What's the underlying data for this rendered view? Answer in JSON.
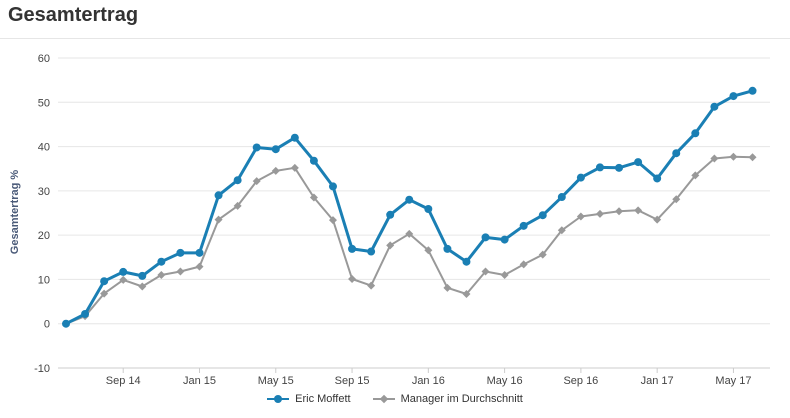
{
  "chart_data": {
    "type": "line",
    "title": "Gesamtertrag",
    "ylabel": "Gesamtertrag %",
    "xlabel": "",
    "ylim": [
      -10,
      60
    ],
    "yticks": [
      -10,
      0,
      10,
      20,
      30,
      40,
      50,
      60
    ],
    "grid": true,
    "legend_position": "bottom",
    "x_tick_labels": [
      {
        "label": "Sep 14",
        "index": 3
      },
      {
        "label": "Jan 15",
        "index": 7
      },
      {
        "label": "May 15",
        "index": 11
      },
      {
        "label": "Sep 15",
        "index": 15
      },
      {
        "label": "Jan 16",
        "index": 19
      },
      {
        "label": "May 16",
        "index": 23
      },
      {
        "label": "Sep 16",
        "index": 27
      },
      {
        "label": "Jan 17",
        "index": 31
      },
      {
        "label": "May 17",
        "index": 35
      }
    ],
    "series": [
      {
        "name": "Eric Moffett",
        "color": "#1a7fb4",
        "marker": "circle",
        "values": [
          0,
          2.2,
          9.6,
          11.7,
          10.8,
          14.0,
          16.0,
          16.0,
          29.0,
          32.4,
          39.8,
          39.4,
          42.0,
          36.8,
          31.0,
          16.9,
          16.3,
          24.6,
          28.0,
          25.9,
          16.9,
          14.0,
          19.5,
          19.0,
          22.1,
          24.5,
          28.6,
          33.0,
          35.3,
          35.2,
          36.5,
          32.8,
          38.5,
          43.0,
          49.0,
          51.4,
          52.6
        ]
      },
      {
        "name": "Manager im Durchschnitt",
        "color": "#999999",
        "marker": "diamond",
        "values": [
          0,
          1.7,
          6.8,
          9.9,
          8.4,
          11.0,
          11.8,
          12.9,
          23.5,
          26.6,
          32.2,
          34.5,
          35.2,
          28.5,
          23.4,
          10.1,
          8.6,
          17.7,
          20.3,
          16.6,
          8.1,
          6.7,
          11.8,
          11.0,
          13.4,
          15.6,
          21.1,
          24.2,
          24.8,
          25.4,
          25.6,
          23.5,
          28.1,
          33.5,
          37.3,
          37.7,
          37.6
        ]
      }
    ]
  }
}
